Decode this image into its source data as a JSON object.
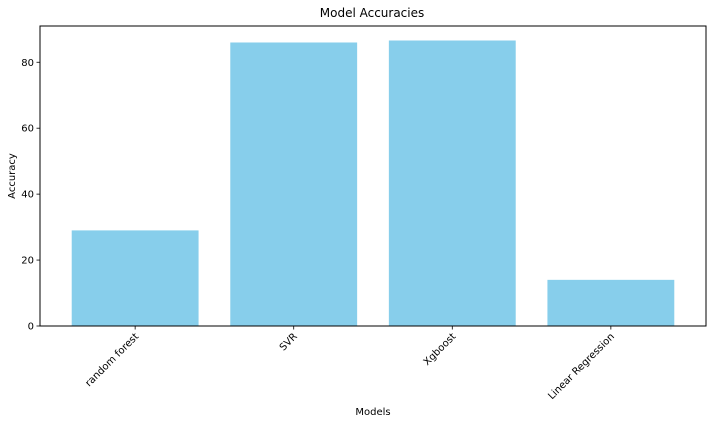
{
  "chart_data": {
    "type": "bar",
    "title": "Model Accuracies",
    "xlabel": "Models",
    "ylabel": "Accuracy",
    "categories": [
      "random forest",
      "SVR",
      "Xgboost",
      "Linear Regression"
    ],
    "values": [
      29.0,
      86.0,
      86.6,
      14.0
    ],
    "ylim": [
      0,
      91
    ],
    "yticks": [
      0,
      20,
      40,
      60,
      80
    ],
    "bar_color": "#87CEEB",
    "grid": false,
    "xtick_rotation_deg": 45
  }
}
